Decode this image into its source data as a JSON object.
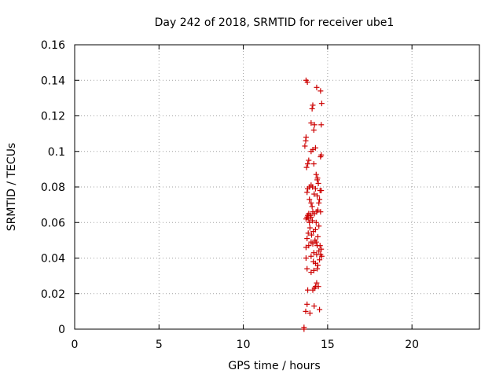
{
  "chart_data": {
    "type": "scatter",
    "title": "Day 242 of 2018, SRMTID for receiver ube1",
    "xlabel": "GPS time / hours",
    "ylabel": "SRMTID / TECUs",
    "xlim": [
      0,
      24
    ],
    "ylim": [
      0,
      0.16
    ],
    "xticks": [
      0,
      5,
      10,
      15,
      20
    ],
    "xtick_labels": [
      "0",
      "5",
      "10",
      "15",
      "20"
    ],
    "yticks": [
      0,
      0.02,
      0.04,
      0.06,
      0.08,
      0.1,
      0.12,
      0.14,
      0.16
    ],
    "ytick_labels": [
      "0",
      "0.02",
      "0.04",
      "0.06",
      "0.08",
      "0.1",
      "0.12",
      "0.14",
      "0.16"
    ],
    "grid": true,
    "marker": "+",
    "color": "#cc0000",
    "series": [
      {
        "name": "SRMTID",
        "points": [
          [
            13.72,
            0.14
          ],
          [
            13.8,
            0.139
          ],
          [
            14.35,
            0.136
          ],
          [
            14.58,
            0.134
          ],
          [
            14.65,
            0.127
          ],
          [
            14.12,
            0.126
          ],
          [
            14.08,
            0.124
          ],
          [
            14.02,
            0.116
          ],
          [
            14.22,
            0.115
          ],
          [
            14.62,
            0.115
          ],
          [
            14.18,
            0.112
          ],
          [
            13.72,
            0.108
          ],
          [
            13.7,
            0.106
          ],
          [
            13.65,
            0.103
          ],
          [
            14.28,
            0.102
          ],
          [
            14.12,
            0.101
          ],
          [
            14.02,
            0.1
          ],
          [
            14.62,
            0.098
          ],
          [
            14.58,
            0.097
          ],
          [
            13.88,
            0.095
          ],
          [
            14.18,
            0.093
          ],
          [
            13.82,
            0.093
          ],
          [
            13.75,
            0.091
          ],
          [
            14.32,
            0.087
          ],
          [
            14.4,
            0.085
          ],
          [
            14.38,
            0.084
          ],
          [
            14.45,
            0.082
          ],
          [
            14.02,
            0.081
          ],
          [
            14.1,
            0.08
          ],
          [
            13.92,
            0.08
          ],
          [
            13.82,
            0.079
          ],
          [
            14.28,
            0.079
          ],
          [
            14.55,
            0.078
          ],
          [
            14.62,
            0.078
          ],
          [
            13.78,
            0.077
          ],
          [
            14.2,
            0.076
          ],
          [
            14.38,
            0.075
          ],
          [
            13.92,
            0.073
          ],
          [
            14.52,
            0.073
          ],
          [
            14.02,
            0.071
          ],
          [
            14.48,
            0.071
          ],
          [
            14.08,
            0.069
          ],
          [
            14.42,
            0.067
          ],
          [
            14.58,
            0.066
          ],
          [
            14.12,
            0.066
          ],
          [
            14.35,
            0.066
          ],
          [
            14.22,
            0.065
          ],
          [
            13.88,
            0.065
          ],
          [
            13.98,
            0.064
          ],
          [
            13.82,
            0.064
          ],
          [
            13.78,
            0.063
          ],
          [
            14.02,
            0.063
          ],
          [
            13.72,
            0.062
          ],
          [
            13.85,
            0.062
          ],
          [
            14.1,
            0.061
          ],
          [
            13.92,
            0.06
          ],
          [
            14.32,
            0.06
          ],
          [
            14.48,
            0.058
          ],
          [
            13.95,
            0.057
          ],
          [
            14.28,
            0.056
          ],
          [
            14.15,
            0.055
          ],
          [
            13.85,
            0.054
          ],
          [
            14.05,
            0.053
          ],
          [
            14.42,
            0.052
          ],
          [
            13.78,
            0.051
          ],
          [
            14.25,
            0.05
          ],
          [
            14.32,
            0.049
          ],
          [
            14.02,
            0.049
          ],
          [
            14.12,
            0.048
          ],
          [
            14.38,
            0.047
          ],
          [
            14.55,
            0.047
          ],
          [
            13.88,
            0.047
          ],
          [
            13.72,
            0.046
          ],
          [
            14.62,
            0.045
          ],
          [
            14.48,
            0.044
          ],
          [
            14.18,
            0.043
          ],
          [
            14.58,
            0.042
          ],
          [
            14.35,
            0.042
          ],
          [
            14.02,
            0.041
          ],
          [
            14.65,
            0.041
          ],
          [
            13.72,
            0.04
          ],
          [
            14.52,
            0.039
          ],
          [
            14.15,
            0.038
          ],
          [
            14.28,
            0.037
          ],
          [
            14.42,
            0.036
          ],
          [
            14.38,
            0.034
          ],
          [
            13.78,
            0.034
          ],
          [
            14.18,
            0.033
          ],
          [
            14.02,
            0.032
          ],
          [
            14.35,
            0.026
          ],
          [
            14.28,
            0.024
          ],
          [
            14.45,
            0.024
          ],
          [
            14.22,
            0.023
          ],
          [
            13.82,
            0.022
          ],
          [
            14.12,
            0.022
          ],
          [
            13.78,
            0.014
          ],
          [
            14.2,
            0.013
          ],
          [
            14.52,
            0.011
          ],
          [
            13.7,
            0.01
          ],
          [
            13.95,
            0.009
          ],
          [
            13.6,
            0.001
          ],
          [
            13.6,
            0.0
          ]
        ]
      }
    ]
  }
}
